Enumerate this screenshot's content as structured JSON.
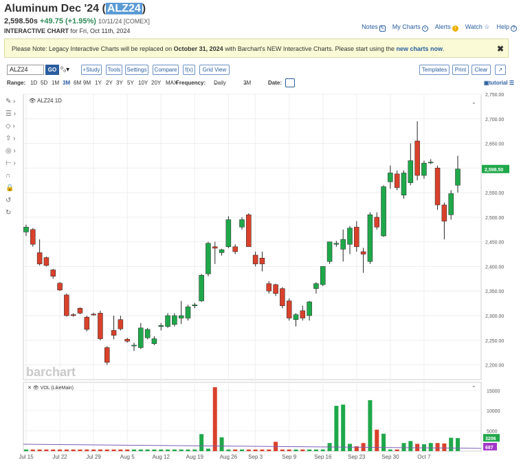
{
  "header": {
    "title_prefix": "Aluminum Dec '24 (",
    "symbol": "ALZ24",
    "title_suffix": ")",
    "price": "2,598.50s",
    "change": "+49.75 (+1.95%)",
    "quote_meta": "10/11/24 [COMEX]",
    "chart_label": "INTERACTIVE CHART",
    "chart_date": "for Fri, Oct 11th, 2024"
  },
  "top_links": [
    "Notes",
    "My Charts",
    "Alerts",
    "Watch",
    "Help"
  ],
  "notice": {
    "text1": "Please Note: Legacy Interactive Charts will be replaced on ",
    "date": "October 31, 2024",
    "text2": " with Barchart's NEW Interactive Charts. Please start using the ",
    "link": "new charts now",
    "text3": ".",
    "close": "✖"
  },
  "toolbar": {
    "symbol_value": "ALZ24",
    "go": "GO",
    "compare_icon": "⁰₀▾",
    "buttons_left": [
      "+Study",
      "Tools",
      "Settings",
      "Compare",
      "f(x)",
      "Grid View"
    ],
    "buttons_right": [
      "Templates",
      "Print",
      "Clear",
      "↗"
    ]
  },
  "range_bar": {
    "range_label": "Range:",
    "ranges": [
      "1D",
      "5D",
      "1M",
      "3M",
      "6M",
      "9M",
      "1Y",
      "2Y",
      "3Y",
      "5Y",
      "10Y",
      "20Y",
      "MAX"
    ],
    "active_range": "3M",
    "frequency_label": "Frequency:",
    "frequency": "Daily",
    "period": "3M",
    "date_label": "Date:",
    "tutorial": "tutorial"
  },
  "sidebar_icons": [
    "pencil-icon",
    "lines-icon",
    "shapes-icon",
    "arrow-icon",
    "target-icon",
    "measure-icon",
    "magnet-icon",
    "lock-icon",
    "undo-icon",
    "redo-icon"
  ],
  "chart_data": [
    {
      "type": "candlestick",
      "series_label": "ALZ24",
      "interval": "1D",
      "watermark": "barchart",
      "last_price_label": "2,598.50",
      "x_tick_labels": [
        "Jul 15",
        "Jul 22",
        "Jul 29",
        "Aug 5",
        "Aug 12",
        "Aug 19",
        "Aug 26",
        "Sep 3",
        "Sep 9",
        "Sep 16",
        "Sep 23",
        "Sep 30",
        "Oct 7"
      ],
      "y_tick_labels": [
        "2,750.00",
        "2,700.00",
        "2,650.00",
        "2,600.00",
        "2,550.00",
        "2,500.00",
        "2,450.00",
        "2,400.00",
        "2,350.00",
        "2,300.00",
        "2,250.00",
        "2,200.00"
      ],
      "ylim": [
        2170,
        2750
      ],
      "colors": {
        "up": "#1fa84a",
        "down": "#d9412b"
      },
      "candles": [
        {
          "o": 2470,
          "h": 2485,
          "l": 2462,
          "c": 2480
        },
        {
          "o": 2475,
          "h": 2478,
          "l": 2440,
          "c": 2445
        },
        {
          "o": 2428,
          "h": 2455,
          "l": 2402,
          "c": 2405
        },
        {
          "o": 2418,
          "h": 2420,
          "l": 2400,
          "c": 2402
        },
        {
          "o": 2393,
          "h": 2395,
          "l": 2375,
          "c": 2380
        },
        {
          "o": 2366,
          "h": 2368,
          "l": 2350,
          "c": 2352
        },
        {
          "o": 2342,
          "h": 2345,
          "l": 2298,
          "c": 2300
        },
        {
          "o": 2302,
          "h": 2305,
          "l": 2298,
          "c": 2300
        },
        {
          "o": 2315,
          "h": 2317,
          "l": 2303,
          "c": 2305
        },
        {
          "o": 2297,
          "h": 2300,
          "l": 2268,
          "c": 2272
        },
        {
          "o": 2303,
          "h": 2306,
          "l": 2300,
          "c": 2302
        },
        {
          "o": 2305,
          "h": 2310,
          "l": 2250,
          "c": 2253
        },
        {
          "o": 2235,
          "h": 2238,
          "l": 2200,
          "c": 2205
        },
        {
          "o": 2270,
          "h": 2300,
          "l": 2252,
          "c": 2260
        },
        {
          "o": 2292,
          "h": 2300,
          "l": 2270,
          "c": 2273
        },
        {
          "o": 2252,
          "h": 2255,
          "l": 2245,
          "c": 2248
        },
        {
          "o": 2240,
          "h": 2245,
          "l": 2228,
          "c": 2240
        },
        {
          "o": 2235,
          "h": 2285,
          "l": 2232,
          "c": 2275
        },
        {
          "o": 2255,
          "h": 2275,
          "l": 2252,
          "c": 2272
        },
        {
          "o": 2243,
          "h": 2258,
          "l": 2240,
          "c": 2253
        },
        {
          "o": 2278,
          "h": 2285,
          "l": 2270,
          "c": 2280
        },
        {
          "o": 2278,
          "h": 2305,
          "l": 2275,
          "c": 2300
        },
        {
          "o": 2282,
          "h": 2305,
          "l": 2278,
          "c": 2300
        },
        {
          "o": 2295,
          "h": 2330,
          "l": 2283,
          "c": 2300
        },
        {
          "o": 2295,
          "h": 2322,
          "l": 2290,
          "c": 2318
        },
        {
          "o": 2320,
          "h": 2326,
          "l": 2315,
          "c": 2322
        },
        {
          "o": 2330,
          "h": 2385,
          "l": 2328,
          "c": 2382
        },
        {
          "o": 2385,
          "h": 2450,
          "l": 2380,
          "c": 2447
        },
        {
          "o": 2440,
          "h": 2450,
          "l": 2405,
          "c": 2437
        },
        {
          "o": 2428,
          "h": 2436,
          "l": 2422,
          "c": 2434
        },
        {
          "o": 2440,
          "h": 2502,
          "l": 2437,
          "c": 2495
        },
        {
          "o": 2440,
          "h": 2445,
          "l": 2425,
          "c": 2430
        },
        {
          "o": 2480,
          "h": 2500,
          "l": 2475,
          "c": 2495
        },
        {
          "o": 2505,
          "h": 2508,
          "l": 2440,
          "c": 2440
        },
        {
          "o": 2423,
          "h": 2430,
          "l": 2400,
          "c": 2405
        },
        {
          "o": 2417,
          "h": 2430,
          "l": 2390,
          "c": 2405
        },
        {
          "o": 2365,
          "h": 2370,
          "l": 2345,
          "c": 2350
        },
        {
          "o": 2363,
          "h": 2365,
          "l": 2340,
          "c": 2345
        },
        {
          "o": 2355,
          "h": 2358,
          "l": 2315,
          "c": 2320
        },
        {
          "o": 2330,
          "h": 2335,
          "l": 2290,
          "c": 2295
        },
        {
          "o": 2292,
          "h": 2305,
          "l": 2278,
          "c": 2302
        },
        {
          "o": 2310,
          "h": 2320,
          "l": 2290,
          "c": 2295
        },
        {
          "o": 2300,
          "h": 2330,
          "l": 2290,
          "c": 2328
        },
        {
          "o": 2355,
          "h": 2368,
          "l": 2345,
          "c": 2365
        },
        {
          "o": 2363,
          "h": 2400,
          "l": 2360,
          "c": 2400
        },
        {
          "o": 2410,
          "h": 2450,
          "l": 2405,
          "c": 2450
        },
        {
          "o": 2445,
          "h": 2452,
          "l": 2440,
          "c": 2447
        },
        {
          "o": 2435,
          "h": 2475,
          "l": 2410,
          "c": 2455
        },
        {
          "o": 2445,
          "h": 2482,
          "l": 2425,
          "c": 2478
        },
        {
          "o": 2480,
          "h": 2492,
          "l": 2430,
          "c": 2440
        },
        {
          "o": 2430,
          "h": 2438,
          "l": 2387,
          "c": 2425
        },
        {
          "o": 2410,
          "h": 2510,
          "l": 2405,
          "c": 2505
        },
        {
          "o": 2500,
          "h": 2510,
          "l": 2475,
          "c": 2480
        },
        {
          "o": 2462,
          "h": 2565,
          "l": 2460,
          "c": 2562
        },
        {
          "o": 2572,
          "h": 2605,
          "l": 2558,
          "c": 2590
        },
        {
          "o": 2588,
          "h": 2595,
          "l": 2555,
          "c": 2560
        },
        {
          "o": 2545,
          "h": 2595,
          "l": 2538,
          "c": 2590
        },
        {
          "o": 2570,
          "h": 2650,
          "l": 2565,
          "c": 2615
        },
        {
          "o": 2655,
          "h": 2695,
          "l": 2575,
          "c": 2585
        },
        {
          "o": 2585,
          "h": 2615,
          "l": 2578,
          "c": 2610
        },
        {
          "o": 2612,
          "h": 2618,
          "l": 2608,
          "c": 2612
        },
        {
          "o": 2600,
          "h": 2605,
          "l": 2515,
          "c": 2525
        },
        {
          "o": 2525,
          "h": 2530,
          "l": 2455,
          "c": 2492
        },
        {
          "o": 2505,
          "h": 2555,
          "l": 2495,
          "c": 2548
        },
        {
          "o": 2565,
          "h": 2625,
          "l": 2550,
          "c": 2598
        }
      ]
    },
    {
      "type": "bar",
      "series_label": "VOL (LikeMain)",
      "y_tick_labels": [
        "15000",
        "10000",
        "5000"
      ],
      "ylim": [
        0,
        17000
      ],
      "last_value_label": "3206",
      "secondary_label": "687",
      "values": [
        400,
        400,
        400,
        400,
        400,
        400,
        400,
        400,
        400,
        400,
        400,
        400,
        400,
        400,
        400,
        400,
        400,
        400,
        400,
        400,
        400,
        400,
        400,
        400,
        400,
        400,
        4200,
        600,
        15800,
        3400,
        400,
        400,
        400,
        400,
        400,
        400,
        400,
        2300,
        400,
        400,
        400,
        400,
        400,
        400,
        400,
        2000,
        11200,
        11500,
        1800,
        1200,
        2000,
        12600,
        5300,
        4300,
        400,
        400,
        2000,
        2500,
        1800,
        1700,
        2000,
        2000,
        1900,
        3300,
        3206
      ],
      "series_colors": [
        "#1fa84a",
        "#d9412b"
      ]
    }
  ]
}
